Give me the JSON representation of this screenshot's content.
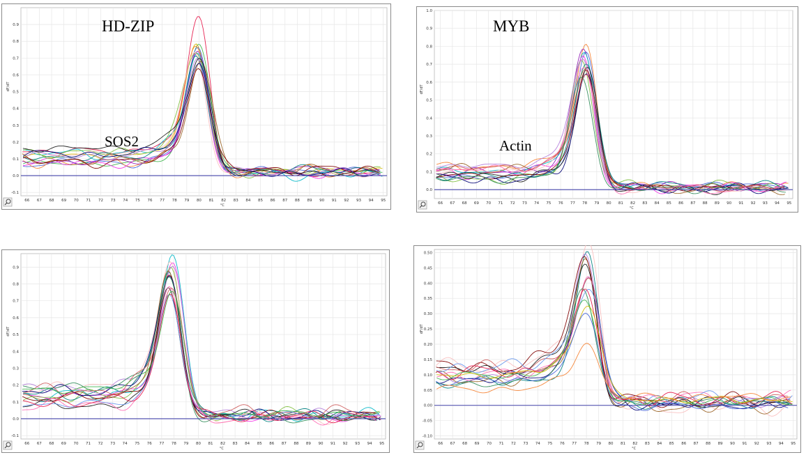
{
  "figure": {
    "labels": {
      "hdzip": "HD-ZIP",
      "myb": "MYB",
      "sos2": "SOS2",
      "actin": "Actin"
    },
    "zoom_icon": "magnifier-icon"
  },
  "chart_data": [
    {
      "id": "panel-a",
      "type": "line",
      "xlabel": "°C",
      "ylabel": "dF/dT",
      "xlim": [
        65.5,
        95.3
      ],
      "ylim": [
        -0.12,
        1.0
      ],
      "x_ticks": [
        "66",
        "67",
        "68",
        "69",
        "70",
        "71",
        "72",
        "73",
        "74",
        "75",
        "76",
        "77",
        "78",
        "79",
        "80",
        "81",
        "82",
        "83",
        "84",
        "85",
        "86",
        "87",
        "88",
        "89",
        "90",
        "91",
        "92",
        "93",
        "94",
        "95"
      ],
      "y_ticks": [
        "-0.1",
        "0.0",
        "0.1",
        "0.2",
        "0.3",
        "0.4",
        "0.5",
        "0.6",
        "0.7",
        "0.8",
        "0.9"
      ],
      "baseline": 0.0,
      "peak_x": 79.9,
      "peak_heights": [
        0.88,
        0.75,
        0.74,
        0.72,
        0.71,
        0.7,
        0.69,
        0.68,
        0.67,
        0.66,
        0.65,
        0.64,
        0.63,
        0.62,
        0.61,
        0.6
      ],
      "pre_level": 0.12,
      "post_level": 0.02,
      "grid": true
    },
    {
      "id": "panel-b",
      "type": "line",
      "xlabel": "°C",
      "ylabel": "dF/dT",
      "xlim": [
        65.5,
        95.3
      ],
      "ylim": [
        -0.05,
        1.0
      ],
      "x_ticks": [
        "66",
        "67",
        "68",
        "69",
        "70",
        "71",
        "72",
        "73",
        "74",
        "75",
        "76",
        "77",
        "78",
        "79",
        "80",
        "81",
        "82",
        "83",
        "84",
        "85",
        "86",
        "87",
        "88",
        "89",
        "90",
        "91",
        "92",
        "93",
        "94",
        "95"
      ],
      "y_ticks": [
        "0.0",
        "0.1",
        "0.2",
        "0.3",
        "0.4",
        "0.5",
        "0.6",
        "0.7",
        "0.8",
        "0.9",
        "1.0"
      ],
      "baseline": 0.0,
      "peak_x": 78.0,
      "peak_heights": [
        0.75,
        0.74,
        0.72,
        0.71,
        0.7,
        0.69,
        0.68,
        0.67,
        0.66,
        0.65,
        0.64,
        0.63,
        0.62,
        0.61,
        0.6,
        0.58
      ],
      "pre_level": 0.1,
      "post_level": 0.01,
      "grid": true
    },
    {
      "id": "panel-c",
      "type": "line",
      "xlabel": "°C",
      "ylabel": "dF/dT",
      "xlim": [
        65.5,
        95.3
      ],
      "ylim": [
        -0.12,
        0.98
      ],
      "x_ticks": [
        "66",
        "67",
        "68",
        "69",
        "70",
        "71",
        "72",
        "73",
        "74",
        "75",
        "76",
        "77",
        "78",
        "79",
        "80",
        "81",
        "82",
        "83",
        "84",
        "85",
        "86",
        "87",
        "88",
        "89",
        "90",
        "91",
        "92",
        "93",
        "94",
        "95"
      ],
      "y_ticks": [
        "-0.1",
        "0.0",
        "0.1",
        "0.2",
        "0.3",
        "0.4",
        "0.5",
        "0.6",
        "0.7",
        "0.8",
        "0.9"
      ],
      "baseline": 0.0,
      "peak_x": 77.8,
      "peak_heights": [
        0.86,
        0.85,
        0.84,
        0.83,
        0.82,
        0.8,
        0.79,
        0.77,
        0.76,
        0.75,
        0.74,
        0.73,
        0.72,
        0.7,
        0.69,
        0.68
      ],
      "pre_level": 0.13,
      "post_level": 0.02,
      "grid": true
    },
    {
      "id": "panel-d",
      "type": "line",
      "xlabel": "°C",
      "ylabel": "dF/dT",
      "xlim": [
        65.5,
        95.3
      ],
      "ylim": [
        -0.11,
        0.51
      ],
      "x_ticks": [
        "66",
        "67",
        "68",
        "69",
        "70",
        "71",
        "72",
        "73",
        "74",
        "75",
        "76",
        "77",
        "78",
        "79",
        "80",
        "81",
        "82",
        "83",
        "84",
        "85",
        "86",
        "87",
        "88",
        "89",
        "90",
        "91",
        "92",
        "93",
        "94",
        "95"
      ],
      "y_ticks": [
        "-0.10",
        "-0.05",
        "0.00",
        "0.05",
        "0.10",
        "0.15",
        "0.20",
        "0.25",
        "0.30",
        "0.35",
        "0.40",
        "0.45",
        "0.50"
      ],
      "baseline": 0.0,
      "peak_x": 78.0,
      "peak_heights": [
        0.47,
        0.46,
        0.44,
        0.43,
        0.42,
        0.4,
        0.38,
        0.36,
        0.35,
        0.34,
        0.33,
        0.31,
        0.3,
        0.28,
        0.26,
        0.18
      ],
      "pre_level": 0.09,
      "post_level": 0.01,
      "grid": true
    }
  ],
  "series_colors": [
    "#e6194b",
    "#3cb44b",
    "#d4b800",
    "#4363d8",
    "#f58231",
    "#911eb4",
    "#00b7c7",
    "#f032e6",
    "#7fbf3f",
    "#fabebe",
    "#008080",
    "#b37ddb",
    "#9a6324",
    "#800000",
    "#1a1a1a",
    "#000075",
    "#ff69b4",
    "#2e8b57",
    "#cd5c5c",
    "#6495ed"
  ]
}
